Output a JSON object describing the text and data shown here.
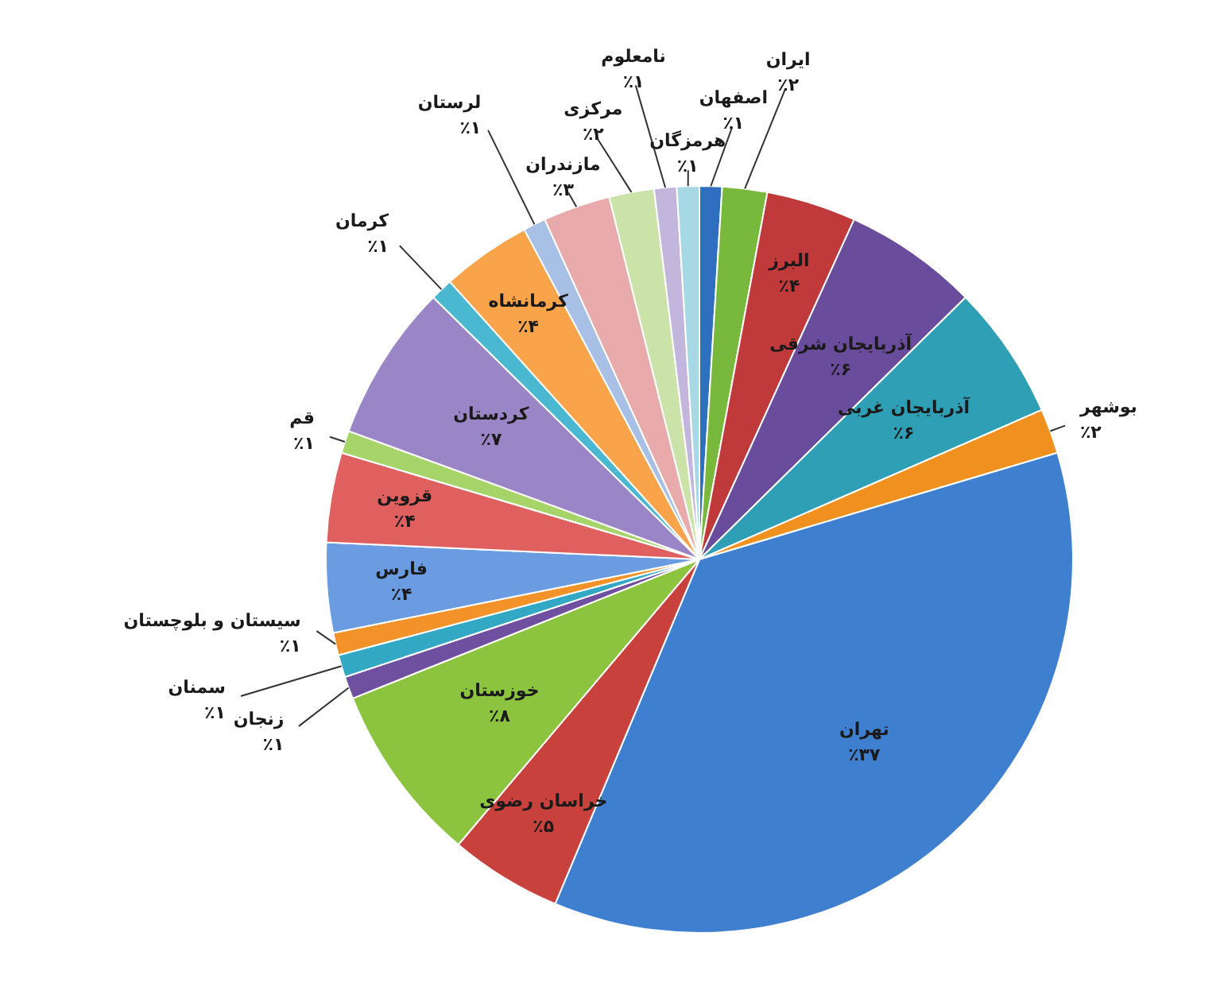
{
  "chart_data": {
    "type": "pie",
    "categories": [
      "اصفهان",
      "ایران",
      "البرز",
      "آذربایجان شرقی",
      "آذربایجان غربی",
      "بوشهر",
      "تهران",
      "خراسان رضوی",
      "خوزستان",
      "زنجان",
      "سمنان",
      "سیستان و بلوچستان",
      "فارس",
      "قزوین",
      "قم",
      "کردستان",
      "کرمان",
      "کرمانشاه",
      "لرستان",
      "مازندران",
      "مرکزی",
      "نامعلوم",
      "هرمزگان"
    ],
    "values": [
      1,
      2,
      4,
      6,
      6,
      2,
      37,
      5,
      8,
      1,
      1,
      1,
      4,
      4,
      1,
      7,
      1,
      4,
      1,
      3,
      2,
      1,
      1
    ],
    "value_labels": [
      "٪۱",
      "٪۲",
      "٪۴",
      "٪۶",
      "٪۶",
      "٪۲",
      "٪۳۷",
      "٪۵",
      "٪۸",
      "٪۱",
      "٪۱",
      "٪۱",
      "٪۴",
      "٪۴",
      "٪۱",
      "٪۷",
      "٪۱",
      "٪۴",
      "٪۱",
      "٪۳",
      "٪۲",
      "٪۱",
      "٪۱"
    ],
    "colors": [
      "#2e6fc0",
      "#78b83c",
      "#c0393b",
      "#6a4c9c",
      "#2e9fb5",
      "#f0901e",
      "#3f7fcf",
      "#c9413d",
      "#8cc43f",
      "#6e4fa0",
      "#33a8c4",
      "#f4922a",
      "#6b9be0",
      "#e06060",
      "#a6d468",
      "#9a85c6",
      "#4ab8d0",
      "#f9a44a",
      "#a9c0e6",
      "#e8aaaa",
      "#cbe3a8",
      "#c2b6dc",
      "#a6d8e6"
    ]
  }
}
